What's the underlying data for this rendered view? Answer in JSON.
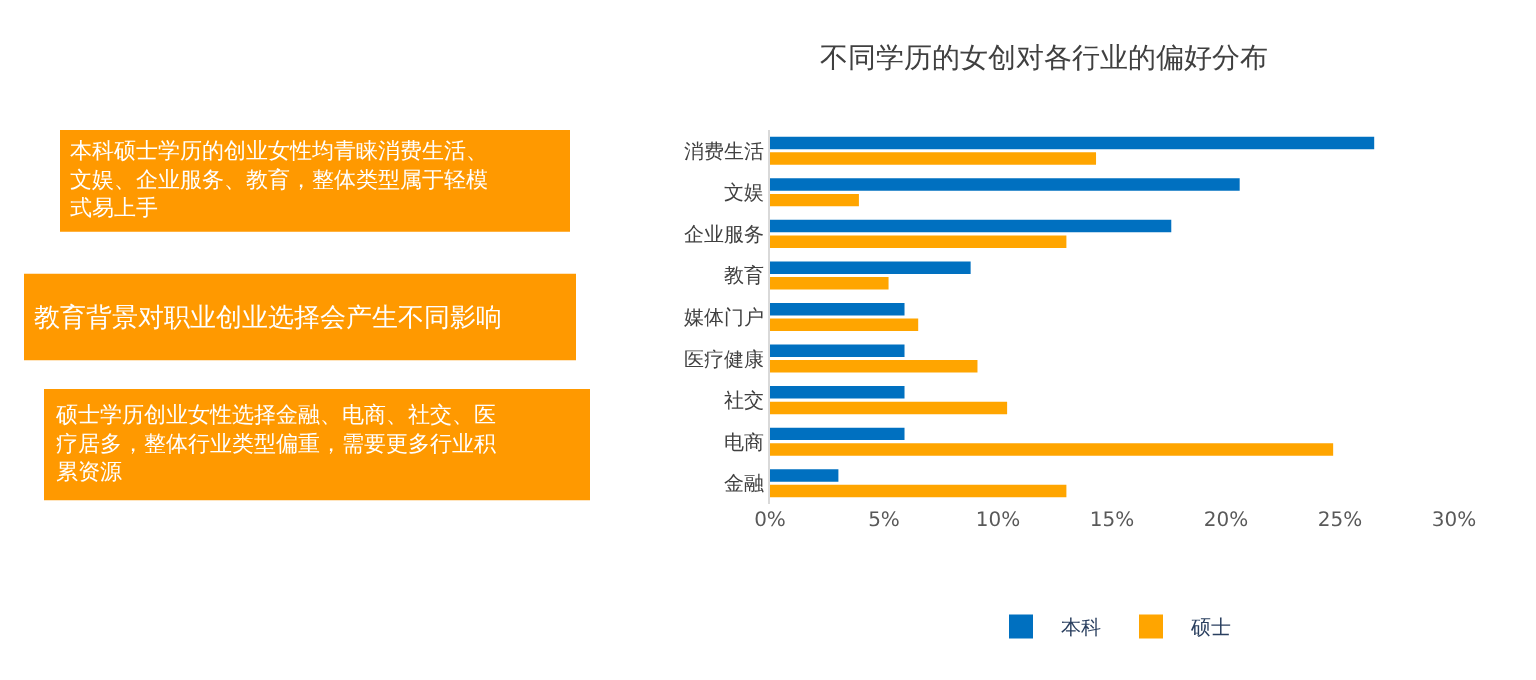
{
  "chart_data": {
    "type": "bar",
    "orientation": "horizontal",
    "title": "不同学历的女创对各行业的偏好分布",
    "categories": [
      "消费生活",
      "文娱",
      "企业服务",
      "教育",
      "媒体门户",
      "医疗健康",
      "社交",
      "电商",
      "金融"
    ],
    "series": [
      {
        "name": "本科",
        "color": "#0070c0",
        "values": [
          26.5,
          20.6,
          17.6,
          8.8,
          5.9,
          5.9,
          5.9,
          5.9,
          3.0
        ]
      },
      {
        "name": "硕士",
        "color": "#ffa500",
        "values": [
          14.3,
          3.9,
          13.0,
          5.2,
          6.5,
          9.1,
          10.4,
          24.7,
          13.0
        ]
      }
    ],
    "xlim": [
      0,
      30
    ],
    "xticks": [
      {
        "value": 0,
        "label": "0%"
      },
      {
        "value": 5,
        "label": "5%"
      },
      {
        "value": 10,
        "label": "10%"
      },
      {
        "value": 15,
        "label": "15%"
      },
      {
        "value": 20,
        "label": "20%"
      },
      {
        "value": 25,
        "label": "25%"
      },
      {
        "value": 30,
        "label": "30%"
      }
    ],
    "annotations": [
      "本科硕士学历的创业女性均青睐消费生活、文娱、企业服务、教育，整体类型属于轻模式易上手",
      "教育背景对职业创业选择会产生不同影响",
      "硕士学历创业女性选择金融、电商、社交、医疗居多，整体行业类型偏重，需要更多行业积累资源"
    ],
    "legend": "bottom"
  }
}
